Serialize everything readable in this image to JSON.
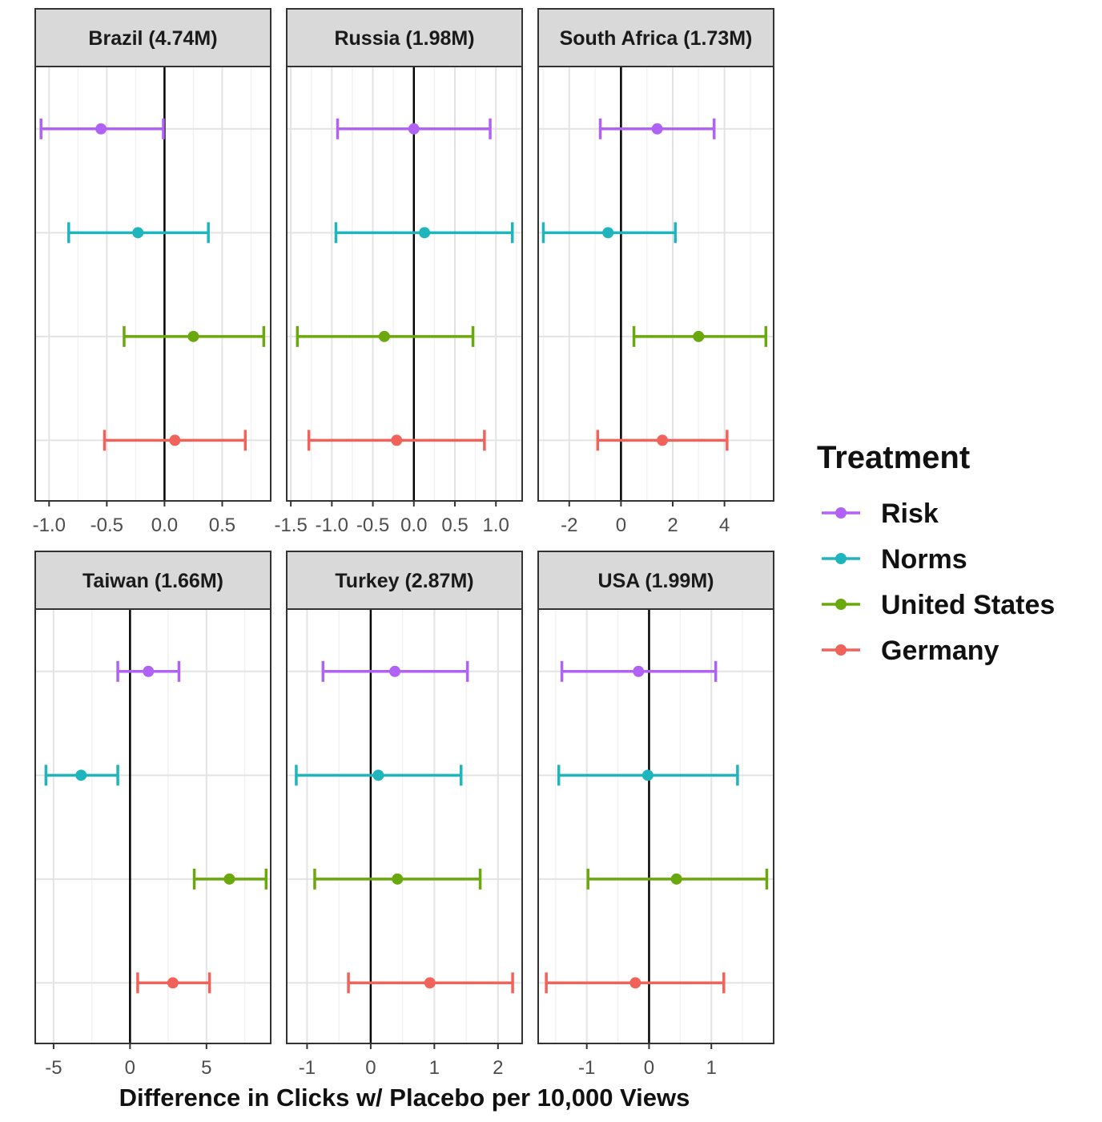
{
  "chart_data": {
    "type": "errorbar-facets",
    "xlabel": "Difference in Clicks w/ Placebo per 10,000 Views",
    "legend": {
      "title": "Treatment",
      "placement": "right",
      "entries": [
        {
          "name": "Risk",
          "color": "#b062f5"
        },
        {
          "name": "Norms",
          "color": "#1fb5bd"
        },
        {
          "name": "United States",
          "color": "#6aa80d"
        },
        {
          "name": "Germany",
          "color": "#f0625a"
        }
      ]
    },
    "grid": true,
    "panels": [
      {
        "title": "Brazil (4.74M)",
        "xlim": [
          -1.12,
          0.92
        ],
        "ticks": [
          -1.0,
          -0.5,
          0.0,
          0.5
        ],
        "tick_labels": [
          "-1.0",
          "-0.5",
          "0.0",
          "0.5"
        ],
        "minor_ticks": [
          -0.75,
          -0.25,
          0.25,
          0.75
        ],
        "rows": [
          {
            "treatment": "Risk",
            "estimate": -0.55,
            "low": -1.07,
            "high": -0.01
          },
          {
            "treatment": "Norms",
            "estimate": -0.23,
            "low": -0.83,
            "high": 0.38
          },
          {
            "treatment": "United States",
            "estimate": 0.25,
            "low": -0.35,
            "high": 0.86
          },
          {
            "treatment": "Germany",
            "estimate": 0.09,
            "low": -0.52,
            "high": 0.7
          }
        ]
      },
      {
        "title": "Russia (1.98M)",
        "xlim": [
          -1.55,
          1.32
        ],
        "ticks": [
          -1.5,
          -1.0,
          -0.5,
          0.0,
          0.5,
          1.0
        ],
        "tick_labels": [
          "-1.5",
          "-1.0",
          "-0.5",
          "0.0",
          "0.5",
          "1.0"
        ],
        "minor_ticks": [
          -1.25,
          -0.75,
          -0.25,
          0.25,
          0.75,
          1.25
        ],
        "rows": [
          {
            "treatment": "Risk",
            "estimate": 0.0,
            "low": -0.93,
            "high": 0.93
          },
          {
            "treatment": "Norms",
            "estimate": 0.13,
            "low": -0.95,
            "high": 1.2
          },
          {
            "treatment": "United States",
            "estimate": -0.36,
            "low": -1.42,
            "high": 0.72
          },
          {
            "treatment": "Germany",
            "estimate": -0.21,
            "low": -1.28,
            "high": 0.86
          }
        ]
      },
      {
        "title": "South Africa (1.73M)",
        "xlim": [
          -3.2,
          5.9
        ],
        "ticks": [
          -2,
          0,
          2,
          4
        ],
        "tick_labels": [
          "-2",
          "0",
          "2",
          "4"
        ],
        "minor_ticks": [
          -3,
          -1,
          1,
          3,
          5
        ],
        "rows": [
          {
            "treatment": "Risk",
            "estimate": 1.4,
            "low": -0.8,
            "high": 3.6
          },
          {
            "treatment": "Norms",
            "estimate": -0.5,
            "low": -3.0,
            "high": 2.1
          },
          {
            "treatment": "United States",
            "estimate": 3.0,
            "low": 0.5,
            "high": 5.6
          },
          {
            "treatment": "Germany",
            "estimate": 1.6,
            "low": -0.9,
            "high": 4.1
          }
        ]
      },
      {
        "title": "Taiwan (1.66M)",
        "xlim": [
          -6.2,
          9.2
        ],
        "ticks": [
          -5,
          0,
          5
        ],
        "tick_labels": [
          "-5",
          "0",
          "5"
        ],
        "minor_ticks": [
          -2.5,
          2.5,
          7.5
        ],
        "rows": [
          {
            "treatment": "Risk",
            "estimate": 1.2,
            "low": -0.8,
            "high": 3.2
          },
          {
            "treatment": "Norms",
            "estimate": -3.2,
            "low": -5.5,
            "high": -0.8
          },
          {
            "treatment": "United States",
            "estimate": 6.5,
            "low": 4.2,
            "high": 8.9
          },
          {
            "treatment": "Germany",
            "estimate": 2.8,
            "low": 0.5,
            "high": 5.2
          }
        ]
      },
      {
        "title": "Turkey (2.87M)",
        "xlim": [
          -1.32,
          2.38
        ],
        "ticks": [
          -1,
          0,
          1,
          2
        ],
        "tick_labels": [
          "-1",
          "0",
          "1",
          "2"
        ],
        "minor_ticks": [
          -0.5,
          0.5,
          1.5
        ],
        "rows": [
          {
            "treatment": "Risk",
            "estimate": 0.38,
            "low": -0.75,
            "high": 1.52
          },
          {
            "treatment": "Norms",
            "estimate": 0.12,
            "low": -1.17,
            "high": 1.42
          },
          {
            "treatment": "United States",
            "estimate": 0.42,
            "low": -0.88,
            "high": 1.72
          },
          {
            "treatment": "Germany",
            "estimate": 0.93,
            "low": -0.35,
            "high": 2.23
          }
        ]
      },
      {
        "title": "USA (1.99M)",
        "xlim": [
          -1.78,
          2.0
        ],
        "ticks": [
          -1,
          0,
          1
        ],
        "tick_labels": [
          "-1",
          "0",
          "1"
        ],
        "minor_ticks": [
          -1.5,
          -0.5,
          0.5,
          1.5
        ],
        "rows": [
          {
            "treatment": "Risk",
            "estimate": -0.17,
            "low": -1.4,
            "high": 1.07
          },
          {
            "treatment": "Norms",
            "estimate": -0.02,
            "low": -1.45,
            "high": 1.42
          },
          {
            "treatment": "United States",
            "estimate": 0.44,
            "low": -0.98,
            "high": 1.89
          },
          {
            "treatment": "Germany",
            "estimate": -0.22,
            "low": -1.65,
            "high": 1.2
          }
        ]
      }
    ]
  }
}
